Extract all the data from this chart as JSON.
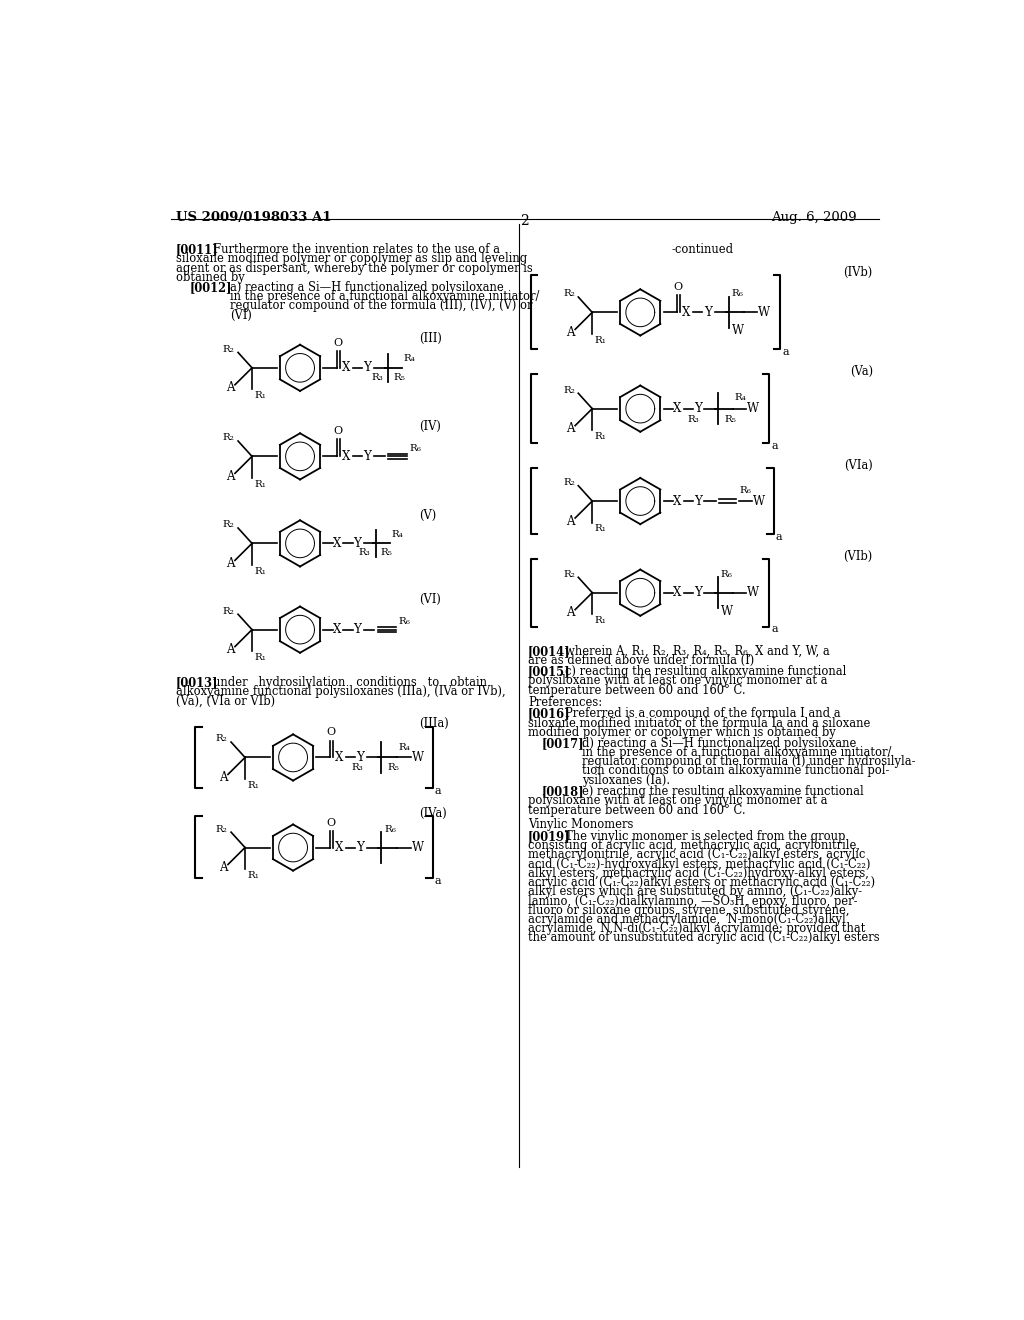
{
  "background_color": "#ffffff",
  "text_color": "#000000",
  "header_left": "US 2009/0198033 A1",
  "header_right": "Aug. 6, 2009",
  "page_number": "2"
}
